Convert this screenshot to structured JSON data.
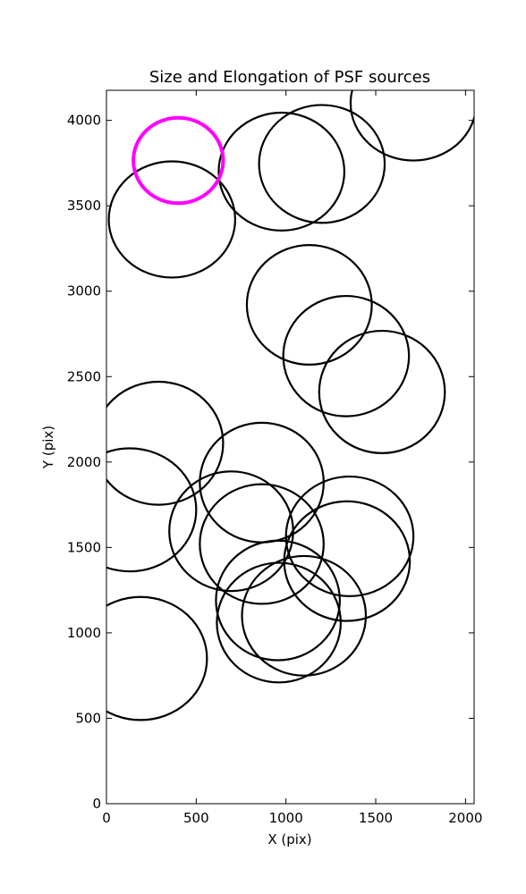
{
  "chart_data": {
    "type": "scatter",
    "title": "Size and Elongation of PSF sources",
    "xlabel": "X (pix)",
    "ylabel": "Y (pix)",
    "xlim": [
      0,
      2048
    ],
    "ylim": [
      0,
      4176
    ],
    "xticks": [
      0,
      500,
      1000,
      1500,
      2000
    ],
    "yticks": [
      0,
      500,
      1000,
      1500,
      2000,
      2500,
      3000,
      3500,
      4000
    ],
    "xtick_labels": [
      "0",
      "500",
      "1000",
      "1500",
      "2000"
    ],
    "ytick_labels": [
      "0",
      "500",
      "1000",
      "1500",
      "2000",
      "2500",
      "3000",
      "3500",
      "4000"
    ],
    "grid": false,
    "colors": {
      "default": "#000000",
      "highlight": "#ff00ff"
    },
    "sources": [
      {
        "x": 400,
        "y": 3765,
        "rx": 250,
        "ry": 250,
        "highlight": true
      },
      {
        "x": 365,
        "y": 3420,
        "rx": 352,
        "ry": 340
      },
      {
        "x": 975,
        "y": 3700,
        "rx": 350,
        "ry": 345
      },
      {
        "x": 1200,
        "y": 3745,
        "rx": 350,
        "ry": 345
      },
      {
        "x": 1710,
        "y": 4100,
        "rx": 350,
        "ry": 335
      },
      {
        "x": 1130,
        "y": 2920,
        "rx": 348,
        "ry": 350
      },
      {
        "x": 1335,
        "y": 2620,
        "rx": 350,
        "ry": 352
      },
      {
        "x": 1535,
        "y": 2410,
        "rx": 350,
        "ry": 358
      },
      {
        "x": 290,
        "y": 2110,
        "rx": 360,
        "ry": 360
      },
      {
        "x": 130,
        "y": 1720,
        "rx": 370,
        "ry": 360
      },
      {
        "x": 190,
        "y": 850,
        "rx": 370,
        "ry": 360
      },
      {
        "x": 865,
        "y": 1880,
        "rx": 345,
        "ry": 350
      },
      {
        "x": 695,
        "y": 1595,
        "rx": 345,
        "ry": 350
      },
      {
        "x": 865,
        "y": 1520,
        "rx": 345,
        "ry": 350
      },
      {
        "x": 1355,
        "y": 1565,
        "rx": 355,
        "ry": 350
      },
      {
        "x": 1340,
        "y": 1420,
        "rx": 350,
        "ry": 350
      },
      {
        "x": 955,
        "y": 1190,
        "rx": 345,
        "ry": 350
      },
      {
        "x": 1100,
        "y": 1100,
        "rx": 345,
        "ry": 350
      },
      {
        "x": 960,
        "y": 1060,
        "rx": 345,
        "ry": 350
      }
    ]
  }
}
